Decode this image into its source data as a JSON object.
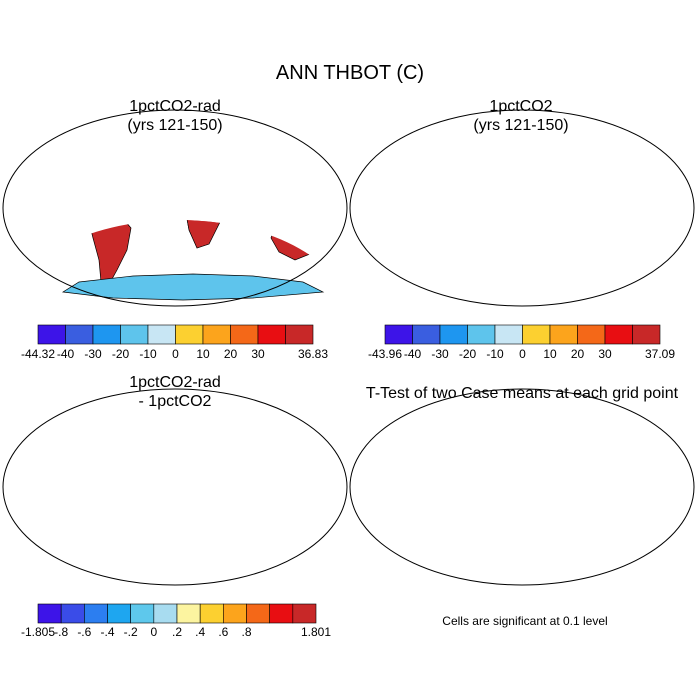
{
  "figure": {
    "title": "ANN THBOT (C)"
  },
  "panels": [
    {
      "title_line1": "1pctCO2-rad",
      "title_line2": "(yrs 121-150)"
    },
    {
      "title_line1": "1pctCO2",
      "title_line2": "(yrs 121-150)"
    },
    {
      "title_line1": "1pctCO2-rad",
      "title_line2": "- 1pctCO2"
    },
    {
      "title_line1": "T-Test of two Case means at each grid point",
      "title_line2": ""
    }
  ],
  "note": "Cells are significant at 0.1 level",
  "colorbars": [
    {
      "labels": [
        "-44.32",
        "-40",
        "-30",
        "-20",
        "-10",
        "0",
        "10",
        "20",
        "30",
        "36.83"
      ],
      "colors": [
        "#3d14e8",
        "#3a5ee0",
        "#1e96f0",
        "#5ec4ec",
        "#c8e6f4",
        "#fcd030",
        "#fca41c",
        "#f46818",
        "#e80e12",
        "#c82828"
      ]
    },
    {
      "labels": [
        "-43.96",
        "-40",
        "-30",
        "-20",
        "-10",
        "0",
        "10",
        "20",
        "30",
        "37.09"
      ],
      "colors": [
        "#3d14e8",
        "#3a5ee0",
        "#1e96f0",
        "#5ec4ec",
        "#c8e6f4",
        "#fcd030",
        "#fca41c",
        "#f46818",
        "#e80e12",
        "#c82828"
      ]
    },
    {
      "labels": [
        "-1.805",
        "-.8",
        "-.6",
        "-.4",
        "-.2",
        "0",
        ".2",
        ".4",
        ".6",
        ".8",
        "1.801"
      ],
      "colors": [
        "#3d14e8",
        "#3a4ce8",
        "#2c7ef0",
        "#1ea6f0",
        "#5ec8ec",
        "#a8dcf0",
        "#fcf4a0",
        "#fcd030",
        "#fca41c",
        "#f46818",
        "#e80e12",
        "#c82828"
      ]
    }
  ],
  "map_colors": {
    "fig1_tropics": "#c82828",
    "fig1_subtropics": "#e80e12",
    "fig1_midlat": "#f46818",
    "fig1_highlat": "#fcd030",
    "fig1_polar": "#c8e6f4",
    "fig1_antarctica": "#5ec4ec",
    "diff_north": "#3d14e8",
    "diff_mid": "#1e96f0",
    "diff_land": "#5ec8ec",
    "diff_warm": "#fcd030",
    "ttest": "#f00000"
  }
}
